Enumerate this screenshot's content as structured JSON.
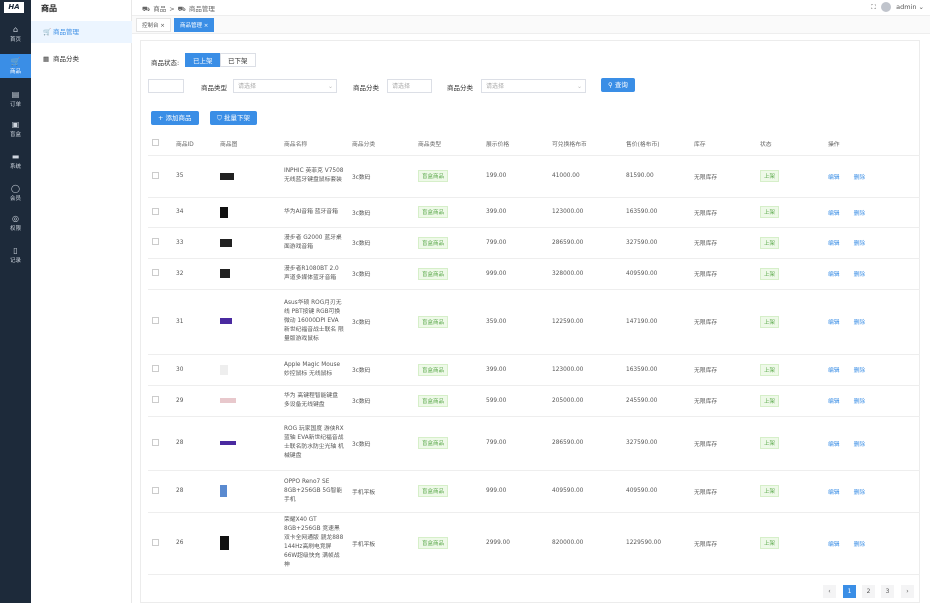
{
  "app": {
    "logo": "HA"
  },
  "rail": [
    {
      "icon": "⌂",
      "label": "首页"
    },
    {
      "icon": "🛒",
      "label": "商品"
    },
    {
      "icon": "▤",
      "label": "订单"
    },
    {
      "icon": "▣",
      "label": "盲盒"
    },
    {
      "icon": "▬",
      "label": "系统"
    },
    {
      "icon": "◯",
      "label": "会员"
    },
    {
      "icon": "◎",
      "label": "权限"
    },
    {
      "icon": "▯",
      "label": "记录"
    }
  ],
  "submenu": {
    "title": "商品",
    "items": [
      {
        "icon": "🛒",
        "label": "商品管理"
      },
      {
        "icon": "▦",
        "label": "商品分类"
      }
    ]
  },
  "breadcrumb": [
    "商品",
    ">",
    "商品管理"
  ],
  "user": {
    "name": "admin"
  },
  "tabs": [
    {
      "label": "控制台"
    },
    {
      "label": "商品管理"
    }
  ],
  "filters": {
    "status_label": "商品状态:",
    "status_on": "已上架",
    "status_off": "已下架",
    "type_label": "商品类型",
    "type_placeholder": "请选择",
    "cat_label": "商品分类",
    "cat_placeholder": "请选择",
    "cat2_label": "商品分类",
    "cat2_placeholder": "请选择",
    "search": "查询"
  },
  "toolbar": {
    "add": "+ 添加商品",
    "batch": "批量下架"
  },
  "columns": [
    "商品ID",
    "商品图",
    "商品名称",
    "商品分类",
    "商品类型",
    "展示价格",
    "可兑换格布币",
    "售价(格布币)",
    "库存",
    "状态",
    "操作"
  ],
  "rows": [
    {
      "id": "35",
      "name": "INPHIC 英菲克 V7508 无线蓝牙键盘鼠标套装",
      "cat": "3c数码",
      "type": "盲盒商品",
      "price": "199.00",
      "ex": "41000.00",
      "sale": "81590.00",
      "stock": "无限库存",
      "status": "上架"
    },
    {
      "id": "34",
      "name": "华为AI音箱 蓝牙音箱",
      "cat": "3c数码",
      "type": "盲盒商品",
      "price": "399.00",
      "ex": "123000.00",
      "sale": "163590.00",
      "stock": "无限库存",
      "status": "上架"
    },
    {
      "id": "33",
      "name": "漫步者 G2000 蓝牙桌面游戏音箱",
      "cat": "3c数码",
      "type": "盲盒商品",
      "price": "799.00",
      "ex": "286590.00",
      "sale": "327590.00",
      "stock": "无限库存",
      "status": "上架"
    },
    {
      "id": "32",
      "name": "漫步者R1080BT 2.0声道多媒体蓝牙音箱",
      "cat": "3c数码",
      "type": "盲盒商品",
      "price": "999.00",
      "ex": "328000.00",
      "sale": "409590.00",
      "stock": "无限库存",
      "status": "上架"
    },
    {
      "id": "31",
      "name": "Asus华硕 ROG月刃无线 PBT按键 RGB可换微动 16000DPI EVA 新世纪福音战士联名 限量版游戏鼠标",
      "cat": "3c数码",
      "type": "盲盒商品",
      "price": "359.00",
      "ex": "122590.00",
      "sale": "147190.00",
      "stock": "无限库存",
      "status": "上架"
    },
    {
      "id": "30",
      "name": "Apple Magic Mouse 妙控鼠标 无线鼠标",
      "cat": "3c数码",
      "type": "盲盒商品",
      "price": "399.00",
      "ex": "123000.00",
      "sale": "163590.00",
      "stock": "无限库存",
      "status": "上架"
    },
    {
      "id": "29",
      "name": "华为 高键程智能键盘 多设备无线键盘",
      "cat": "3c数码",
      "type": "盲盒商品",
      "price": "599.00",
      "ex": "205000.00",
      "sale": "245590.00",
      "stock": "无限库存",
      "status": "上架"
    },
    {
      "id": "28",
      "name": "ROG 玩家国度 游侠RX 蓝轴 EVA新世纪福音战士联名防水防尘光轴 机械键盘",
      "cat": "3c数码",
      "type": "盲盒商品",
      "price": "799.00",
      "ex": "286590.00",
      "sale": "327590.00",
      "stock": "无限库存",
      "status": "上架"
    },
    {
      "id": "28",
      "name": "OPPO Reno7 SE 8GB+256GB 5G智能手机",
      "cat": "手机平板",
      "type": "盲盒商品",
      "price": "999.00",
      "ex": "409590.00",
      "sale": "409590.00",
      "stock": "无限库存",
      "status": "上架"
    },
    {
      "id": "26",
      "name": "荣耀X40 GT 8GB+256GB 竞速黑 双卡全网通版 骁龙888 144Hz高刷电竞屏 66W超级快充 满帧战神",
      "cat": "手机平板",
      "type": "盲盒商品",
      "price": "2999.00",
      "ex": "820000.00",
      "sale": "1229590.00",
      "stock": "无限库存",
      "status": "上架"
    }
  ],
  "actions": {
    "edit": "编辑",
    "del": "删除"
  },
  "pager": {
    "prev": "‹",
    "pages": [
      "1",
      "2",
      "3"
    ],
    "next": "›"
  }
}
